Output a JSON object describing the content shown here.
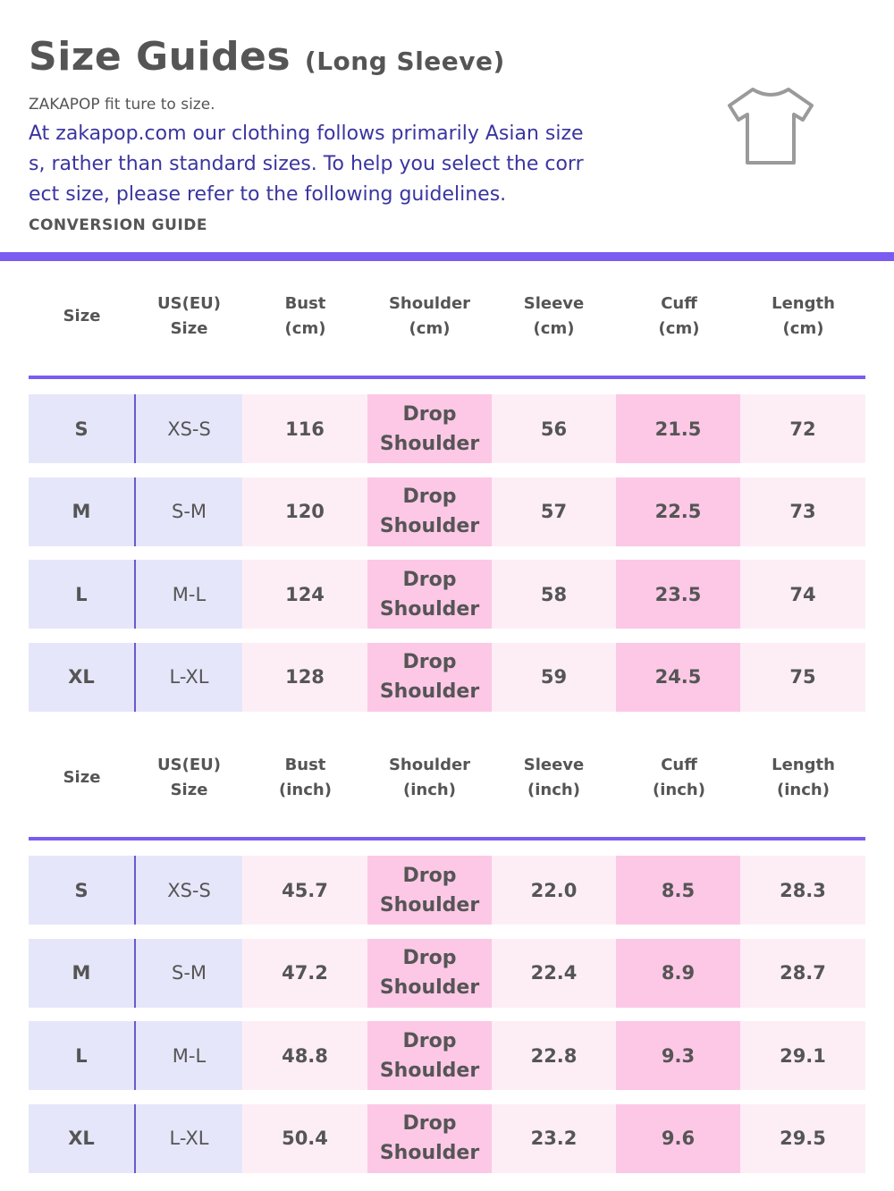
{
  "header": {
    "title": "Size Guides",
    "subtitle": "(Long Sleeve)",
    "fit_note": "ZAKAPOP fit ture to size.",
    "intro": "At zakapop.com our clothing follows primarily Asian sizes, rather than standard sizes. To help you select the correct size, please refer to the following guidelines.",
    "conversion_label": "CONVERSION GUIDE"
  },
  "colors": {
    "accent": "#7a5cf0",
    "size_column": "#e6e6fa",
    "light_pink": "#fdeef6",
    "pink": "#fcc8e6",
    "intro_text": "#3a35a0"
  },
  "icons": [
    "t-shirt-icon"
  ],
  "tables": [
    {
      "columns": [
        "Size",
        "US(EU)\nSize",
        "Bust\n(cm)",
        "Shoulder\n(cm)",
        "Sleeve\n(cm)",
        "Cuff\n(cm)",
        "Length\n(cm)"
      ],
      "rows": [
        [
          "S",
          "XS-S",
          "116",
          "Drop\nShoulder",
          "56",
          "21.5",
          "72"
        ],
        [
          "M",
          "S-M",
          "120",
          "Drop\nShoulder",
          "57",
          "22.5",
          "73"
        ],
        [
          "L",
          "M-L",
          "124",
          "Drop\nShoulder",
          "58",
          "23.5",
          "74"
        ],
        [
          "XL",
          "L-XL",
          "128",
          "Drop\nShoulder",
          "59",
          "24.5",
          "75"
        ]
      ]
    },
    {
      "columns": [
        "Size",
        "US(EU)\nSize",
        "Bust\n(inch)",
        "Shoulder\n(inch)",
        "Sleeve\n(inch)",
        "Cuff\n(inch)",
        "Length\n(inch)"
      ],
      "rows": [
        [
          "S",
          "XS-S",
          "45.7",
          "Drop\nShoulder",
          "22.0",
          "8.5",
          "28.3"
        ],
        [
          "M",
          "S-M",
          "47.2",
          "Drop\nShoulder",
          "22.4",
          "8.9",
          "28.7"
        ],
        [
          "L",
          "M-L",
          "48.8",
          "Drop\nShoulder",
          "22.8",
          "9.3",
          "29.1"
        ],
        [
          "XL",
          "L-XL",
          "50.4",
          "Drop\nShoulder",
          "23.2",
          "9.6",
          "29.5"
        ]
      ]
    }
  ]
}
